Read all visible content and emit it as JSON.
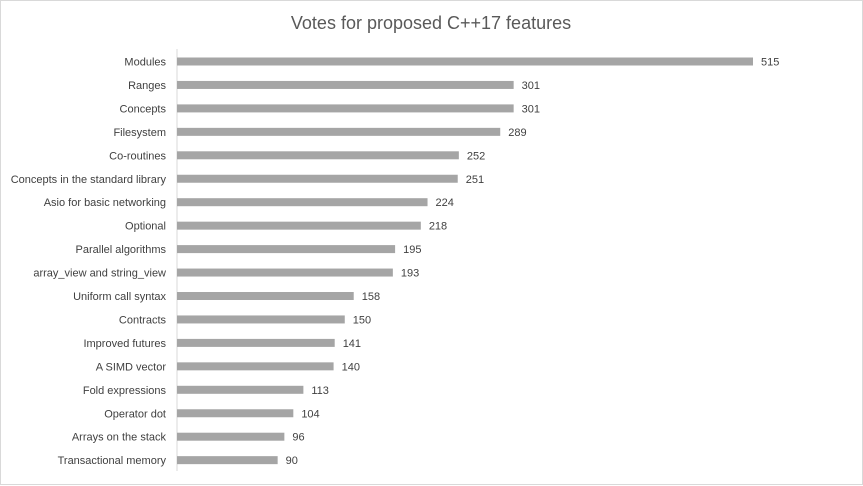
{
  "chart_data": {
    "type": "bar",
    "orientation": "horizontal",
    "title": "Votes for proposed C++17 features",
    "xlabel": "",
    "ylabel": "",
    "grid": false,
    "legend": "none",
    "categories": [
      "Modules",
      "Ranges",
      "Concepts",
      "Filesystem",
      "Co-routines",
      "Concepts in the standard library",
      "Asio for basic networking",
      "Optional",
      "Parallel algorithms",
      "array_view and string_view",
      "Uniform call syntax",
      "Contracts",
      "Improved futures",
      "A SIMD vector",
      "Fold expressions",
      "Operator dot",
      "Arrays on the stack",
      "Transactional memory"
    ],
    "values": [
      515,
      301,
      301,
      289,
      252,
      251,
      224,
      218,
      195,
      193,
      158,
      150,
      141,
      140,
      113,
      104,
      96,
      90
    ],
    "xlim": [
      0,
      515
    ],
    "bar_color": "#a5a5a5",
    "axis_color": "#d9d9d9"
  }
}
